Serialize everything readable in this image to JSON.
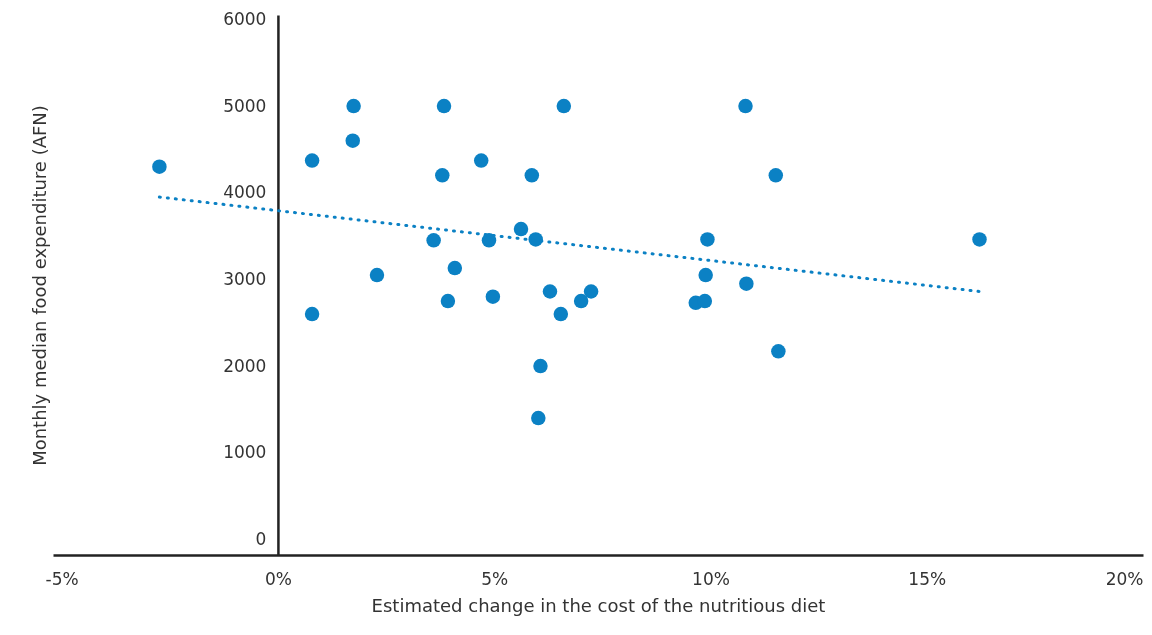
{
  "chart_data": {
    "type": "scatter",
    "xlabel": "Estimated change in the cost of the nutritious diet",
    "ylabel": "Monthly median food expenditure (AFN)",
    "grid": false,
    "xlim": [
      -5.2,
      20
    ],
    "ylim": [
      -180,
      6050
    ],
    "xticks": [
      {
        "value": -5,
        "label": "-5%"
      },
      {
        "value": 0,
        "label": "0%"
      },
      {
        "value": 5,
        "label": "5%"
      },
      {
        "value": 10,
        "label": "10%"
      },
      {
        "value": 15,
        "label": "15%"
      },
      {
        "value": 20,
        "label": "20%"
      }
    ],
    "yticks": [
      0,
      1000,
      2000,
      3000,
      4000,
      5000,
      6000
    ],
    "series": [
      {
        "marker": "circle",
        "color": "#0b81c4",
        "x": [
          -2.74,
          0.79,
          0.79,
          1.75,
          1.73,
          2.29,
          3.6,
          3.8,
          3.84,
          3.93,
          4.09,
          4.7,
          4.88,
          4.97,
          5.62,
          5.87,
          5.96,
          6.07,
          6.02,
          6.29,
          6.61,
          6.54,
          7.01,
          7.24,
          9.66,
          9.87,
          9.89,
          9.93,
          10.81,
          10.83,
          11.51,
          11.57,
          16.22
        ],
        "values": [
          4300,
          2600,
          4370,
          5000,
          4600,
          3050,
          3450,
          4200,
          5000,
          2750,
          3130,
          4370,
          3450,
          2800,
          3580,
          4200,
          3460,
          2000,
          1400,
          2860,
          5000,
          2600,
          2750,
          2860,
          2730,
          2750,
          3050,
          3460,
          5000,
          2950,
          4200,
          2170,
          3460
        ]
      },
      {
        "type": "line",
        "marker": "none",
        "color": "#0b81c4",
        "line_style": "dotted",
        "x": [
          -2.74,
          16.22
        ],
        "values": [
          3950,
          2860
        ]
      }
    ]
  }
}
